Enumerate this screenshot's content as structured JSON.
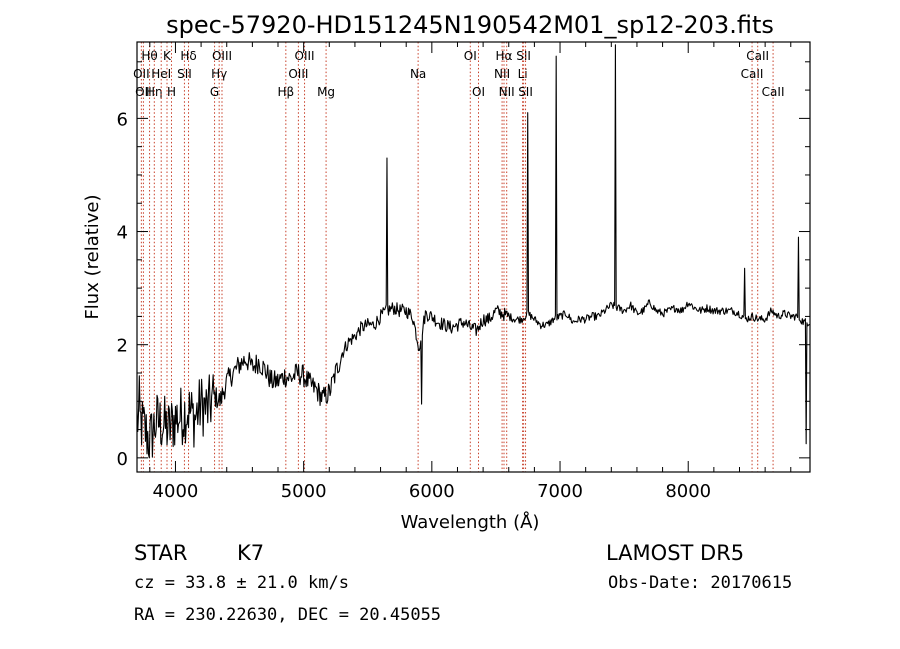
{
  "chart_data": {
    "type": "line",
    "title": "spec-57920-HD151245N190542M01_sp12-203.fits",
    "xlabel": "Wavelength (Å)",
    "ylabel": "Flux (relative)",
    "xlim": [
      3700,
      8950
    ],
    "ylim": [
      -0.25,
      7.35
    ],
    "x_ticks": [
      4000,
      5000,
      6000,
      7000,
      8000
    ],
    "y_ticks": [
      0,
      2,
      4,
      6
    ],
    "grid": false,
    "series": [
      {
        "x": [
          3700,
          3750,
          3800,
          3850,
          3900,
          3950,
          4000,
          4050,
          4100,
          4150,
          4200,
          4250,
          4300,
          4350,
          4400,
          4450,
          4500,
          4550,
          4600,
          4650,
          4700,
          4750,
          4800,
          4850,
          4900,
          4950,
          5000,
          5050,
          5100,
          5150,
          5200,
          5250,
          5300,
          5350,
          5400,
          5450,
          5500,
          5550,
          5600,
          5650,
          5700,
          5750,
          5800,
          5850,
          5900,
          5950,
          6000,
          6050,
          6100,
          6150,
          6200,
          6250,
          6300,
          6350,
          6400,
          6450,
          6500,
          6550,
          6600,
          6650,
          6700,
          6750,
          6800,
          6850,
          6900,
          6950,
          7000,
          7050,
          7100,
          7150,
          7200,
          7250,
          7300,
          7350,
          7400,
          7450,
          7500,
          7550,
          7600,
          7650,
          7700,
          7750,
          7800,
          7850,
          7900,
          7950,
          8000,
          8050,
          8100,
          8150,
          8200,
          8250,
          8300,
          8350,
          8400,
          8450,
          8500,
          8550,
          8600,
          8650,
          8700,
          8750,
          8800,
          8850,
          8900
        ],
        "y": [
          0.7,
          0.55,
          0.3,
          0.65,
          0.6,
          0.5,
          0.7,
          0.75,
          0.85,
          0.7,
          0.95,
          0.85,
          1.1,
          1.0,
          1.35,
          1.5,
          1.65,
          1.75,
          1.6,
          1.7,
          1.55,
          1.35,
          1.35,
          1.45,
          1.4,
          1.5,
          1.45,
          1.3,
          1.2,
          1.05,
          1.15,
          1.5,
          1.85,
          2.05,
          2.15,
          2.3,
          2.35,
          2.35,
          2.5,
          2.6,
          2.65,
          2.6,
          2.6,
          2.5,
          1.95,
          2.55,
          2.5,
          2.4,
          2.35,
          2.3,
          2.35,
          2.4,
          2.3,
          2.25,
          2.45,
          2.45,
          2.6,
          2.55,
          2.5,
          2.45,
          2.45,
          2.55,
          2.45,
          2.35,
          2.35,
          2.45,
          2.5,
          2.55,
          2.4,
          2.45,
          2.45,
          2.5,
          2.5,
          2.6,
          2.7,
          2.65,
          2.6,
          2.7,
          2.55,
          2.6,
          2.75,
          2.6,
          2.55,
          2.6,
          2.65,
          2.6,
          2.75,
          2.65,
          2.6,
          2.65,
          2.6,
          2.6,
          2.6,
          2.6,
          2.55,
          2.45,
          2.5,
          2.45,
          2.45,
          2.6,
          2.5,
          2.55,
          2.5,
          2.5,
          2.4
        ],
        "spikes": [
          {
            "x": 3720,
            "y": 1.45
          },
          {
            "x": 5650,
            "y": 5.3
          },
          {
            "x": 5920,
            "y": 0.95
          },
          {
            "x": 6750,
            "y": 6.1
          },
          {
            "x": 6970,
            "y": 7.1
          },
          {
            "x": 7430,
            "y": 7.3
          },
          {
            "x": 8440,
            "y": 3.35
          },
          {
            "x": 8860,
            "y": 3.9
          },
          {
            "x": 8920,
            "y": 0.25
          }
        ]
      }
    ],
    "line_markers": [
      {
        "x": 3734,
        "label": "OII",
        "row": 1
      },
      {
        "x": 3750,
        "label": "OII",
        "row": 2
      },
      {
        "x": 3798,
        "label": "Hθ",
        "row": 0
      },
      {
        "x": 3835,
        "label": "Hη",
        "row": 2
      },
      {
        "x": 3889,
        "label": "HeI",
        "row": 1
      },
      {
        "x": 3934,
        "label": "K",
        "row": 0
      },
      {
        "x": 3969,
        "label": "H",
        "row": 2
      },
      {
        "x": 4070,
        "label": "SII",
        "row": 1
      },
      {
        "x": 4102,
        "label": "Hδ",
        "row": 0
      },
      {
        "x": 4305,
        "label": "G",
        "row": 2
      },
      {
        "x": 4341,
        "label": "Hγ",
        "row": 1
      },
      {
        "x": 4363,
        "label": "OIII",
        "row": 0
      },
      {
        "x": 4861,
        "label": "Hβ",
        "row": 2
      },
      {
        "x": 4959,
        "label": "OIII",
        "row": 1
      },
      {
        "x": 5007,
        "label": "OIII",
        "row": 0
      },
      {
        "x": 5175,
        "label": "Mg",
        "row": 2
      },
      {
        "x": 5893,
        "label": "Na",
        "row": 1
      },
      {
        "x": 6300,
        "label": "OI",
        "row": 0
      },
      {
        "x": 6364,
        "label": "OI",
        "row": 2
      },
      {
        "x": 6548,
        "label": "NII",
        "row": 1
      },
      {
        "x": 6563,
        "label": "Hα",
        "row": 0
      },
      {
        "x": 6584,
        "label": "NII",
        "row": 2
      },
      {
        "x": 6708,
        "label": "Li",
        "row": 1
      },
      {
        "x": 6716,
        "label": "SII",
        "row": 0
      },
      {
        "x": 6731,
        "label": "SII",
        "row": 2
      },
      {
        "x": 8498,
        "label": "CaII",
        "row": 1
      },
      {
        "x": 8542,
        "label": "CaII",
        "row": 0
      },
      {
        "x": 8662,
        "label": "CaII",
        "row": 2
      }
    ],
    "colors": {
      "spectrum": "#000000",
      "marker": "#c8402a",
      "frame": "#000000"
    }
  },
  "footer": {
    "object_type": "STAR",
    "subclass": "K7",
    "survey": "LAMOST DR5",
    "cz": "cz = 33.8 ± 21.0 km/s",
    "obs_date": "Obs-Date: 20170615",
    "coords": "RA = 230.22630, DEC =  20.45055"
  }
}
